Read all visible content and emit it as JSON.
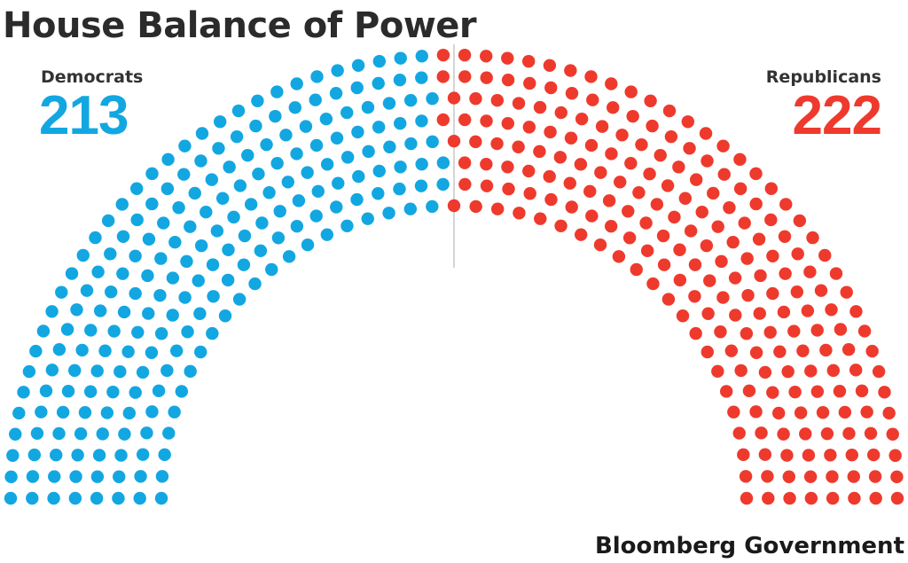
{
  "title": "House Balance of Power",
  "source": "Bloomberg Government",
  "colors": {
    "democrats": "#13a7e1",
    "republicans": "#ee3a2d",
    "divider": "#c8c8c8",
    "title": "#2b2b2b"
  },
  "chart_data": {
    "type": "parliament",
    "title": "House Balance of Power",
    "total_seats": 435,
    "series": [
      {
        "name": "Democrats",
        "values": [
          213
        ],
        "side": "left"
      },
      {
        "name": "Republicans",
        "values": [
          222
        ],
        "side": "right"
      }
    ],
    "layout": "semicircle",
    "divider": true
  }
}
